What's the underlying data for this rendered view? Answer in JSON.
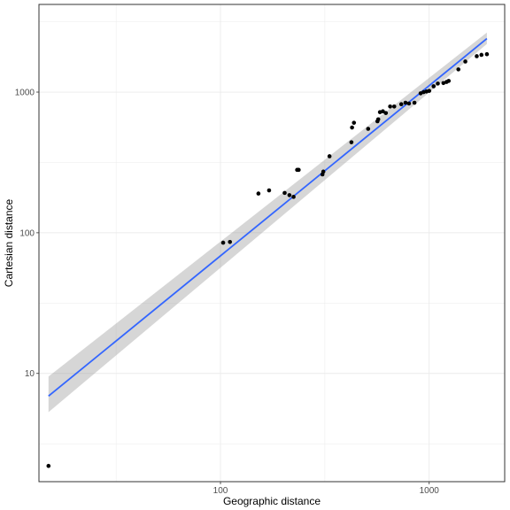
{
  "chart_data": {
    "type": "scatter",
    "xlabel": "Geographic distance",
    "ylabel": "Cartesian distance",
    "x_scale": "log10",
    "y_scale": "log10",
    "xlim": [
      13.5,
      2300
    ],
    "ylim": [
      1.7,
      4200
    ],
    "x_ticks": [
      {
        "value": 100,
        "label": "100"
      },
      {
        "value": 1000,
        "label": "1000"
      }
    ],
    "y_ticks": [
      {
        "value": 10,
        "label": "10"
      },
      {
        "value": 100,
        "label": "100"
      },
      {
        "value": 1000,
        "label": "1000"
      }
    ],
    "grid": true,
    "legend": "none",
    "points": [
      [
        15.0,
        2.2
      ],
      [
        103,
        85
      ],
      [
        111,
        86
      ],
      [
        152,
        190
      ],
      [
        171,
        200
      ],
      [
        203,
        192
      ],
      [
        214,
        185
      ],
      [
        224,
        180
      ],
      [
        233,
        280
      ],
      [
        237,
        280
      ],
      [
        308,
        260
      ],
      [
        311,
        272
      ],
      [
        333,
        350
      ],
      [
        424,
        440
      ],
      [
        427,
        560
      ],
      [
        436,
        605
      ],
      [
        510,
        548
      ],
      [
        565,
        620
      ],
      [
        570,
        640
      ],
      [
        581,
        720
      ],
      [
        600,
        730
      ],
      [
        620,
        710
      ],
      [
        650,
        790
      ],
      [
        680,
        790
      ],
      [
        735,
        820
      ],
      [
        770,
        840
      ],
      [
        800,
        830
      ],
      [
        850,
        840
      ],
      [
        910,
        980
      ],
      [
        940,
        1000
      ],
      [
        970,
        1010
      ],
      [
        1000,
        1020
      ],
      [
        1050,
        1100
      ],
      [
        1100,
        1150
      ],
      [
        1170,
        1160
      ],
      [
        1210,
        1180
      ],
      [
        1240,
        1200
      ],
      [
        1380,
        1450
      ],
      [
        1490,
        1650
      ],
      [
        1690,
        1800
      ],
      [
        1780,
        1840
      ],
      [
        1890,
        1860
      ]
    ],
    "fit": {
      "method": "linear regression on log-log scale with confidence band",
      "x_range": [
        15,
        1890
      ],
      "y_range": [
        6.9,
        2400
      ],
      "band_lower": [
        5.3,
        2200
      ],
      "band_upper": [
        9.5,
        2650
      ]
    },
    "colors": {
      "points": "#000000",
      "fit_line": "#3366ff",
      "band": "#999999",
      "grid": "#ebebeb",
      "panel_border": "#333333"
    }
  }
}
